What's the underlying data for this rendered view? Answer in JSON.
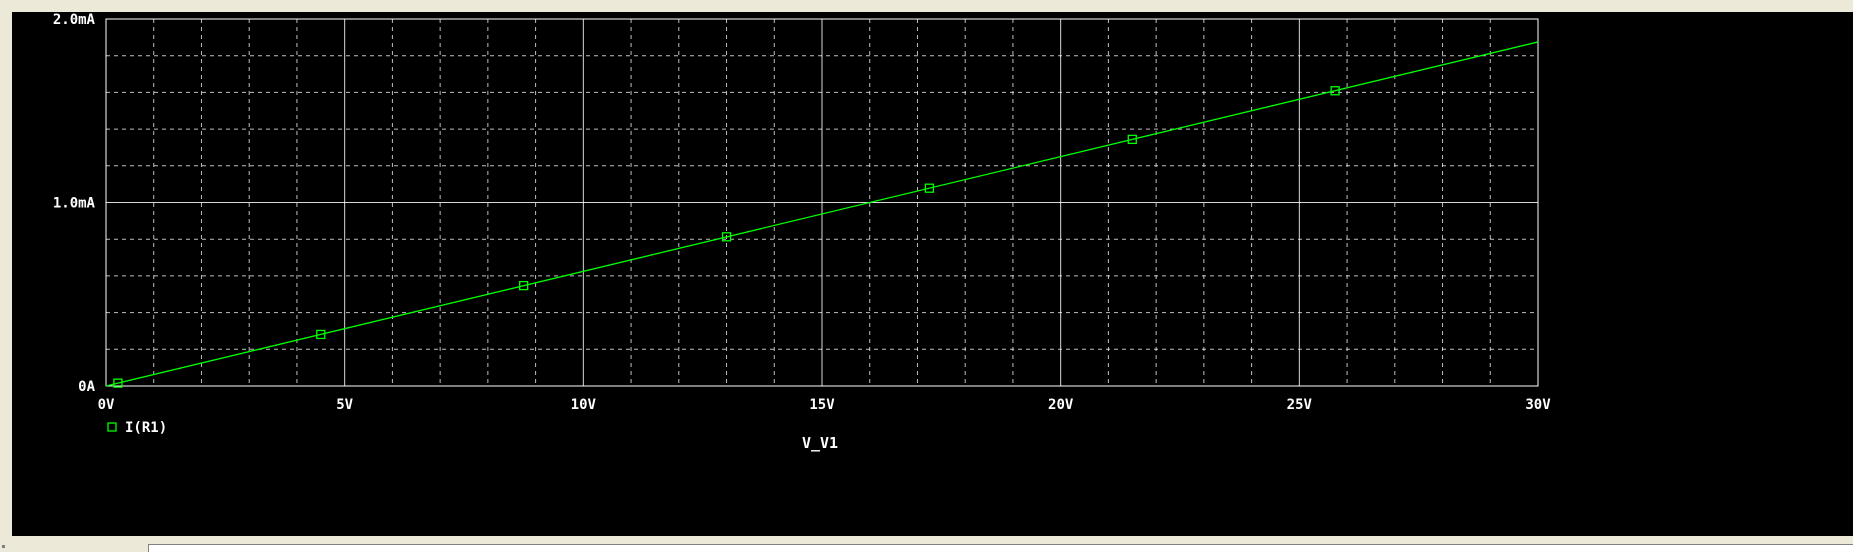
{
  "window": {
    "background_color": "#000000",
    "axis_color": "#ffffff",
    "grid_color": "#ffffff",
    "text_color": "#ffffff",
    "marker_icon": "square-marker-icon"
  },
  "chart_data": {
    "type": "line",
    "xlabel": "V_V1",
    "ylabel": "",
    "title": "",
    "xlim": [
      0,
      30
    ],
    "ylim": [
      0,
      0.002
    ],
    "x_ticks": [
      {
        "value": 0,
        "label": "0V"
      },
      {
        "value": 5,
        "label": "5V"
      },
      {
        "value": 10,
        "label": "10V"
      },
      {
        "value": 15,
        "label": "15V"
      },
      {
        "value": 20,
        "label": "20V"
      },
      {
        "value": 25,
        "label": "25V"
      },
      {
        "value": 30,
        "label": "30V"
      }
    ],
    "y_ticks": [
      {
        "value": 0,
        "label": "0A"
      },
      {
        "value": 0.001,
        "label": "1.0mA"
      },
      {
        "value": 0.002,
        "label": "2.0mA"
      }
    ],
    "x_minor_step": 1,
    "y_minor_step": 0.0002,
    "grid": true,
    "legend_position": "bottom-left",
    "series": [
      {
        "name": "I(R1)",
        "color": "#00ff00",
        "x": [
          0,
          30
        ],
        "y": [
          0,
          0.001875
        ],
        "markers": {
          "x": [
            0.25,
            4.5,
            8.75,
            13,
            17.25,
            21.5,
            25.75
          ],
          "y": [
            1.56e-05,
            0.000281,
            0.000547,
            0.000813,
            0.001078,
            0.001344,
            0.001609
          ]
        }
      }
    ]
  }
}
